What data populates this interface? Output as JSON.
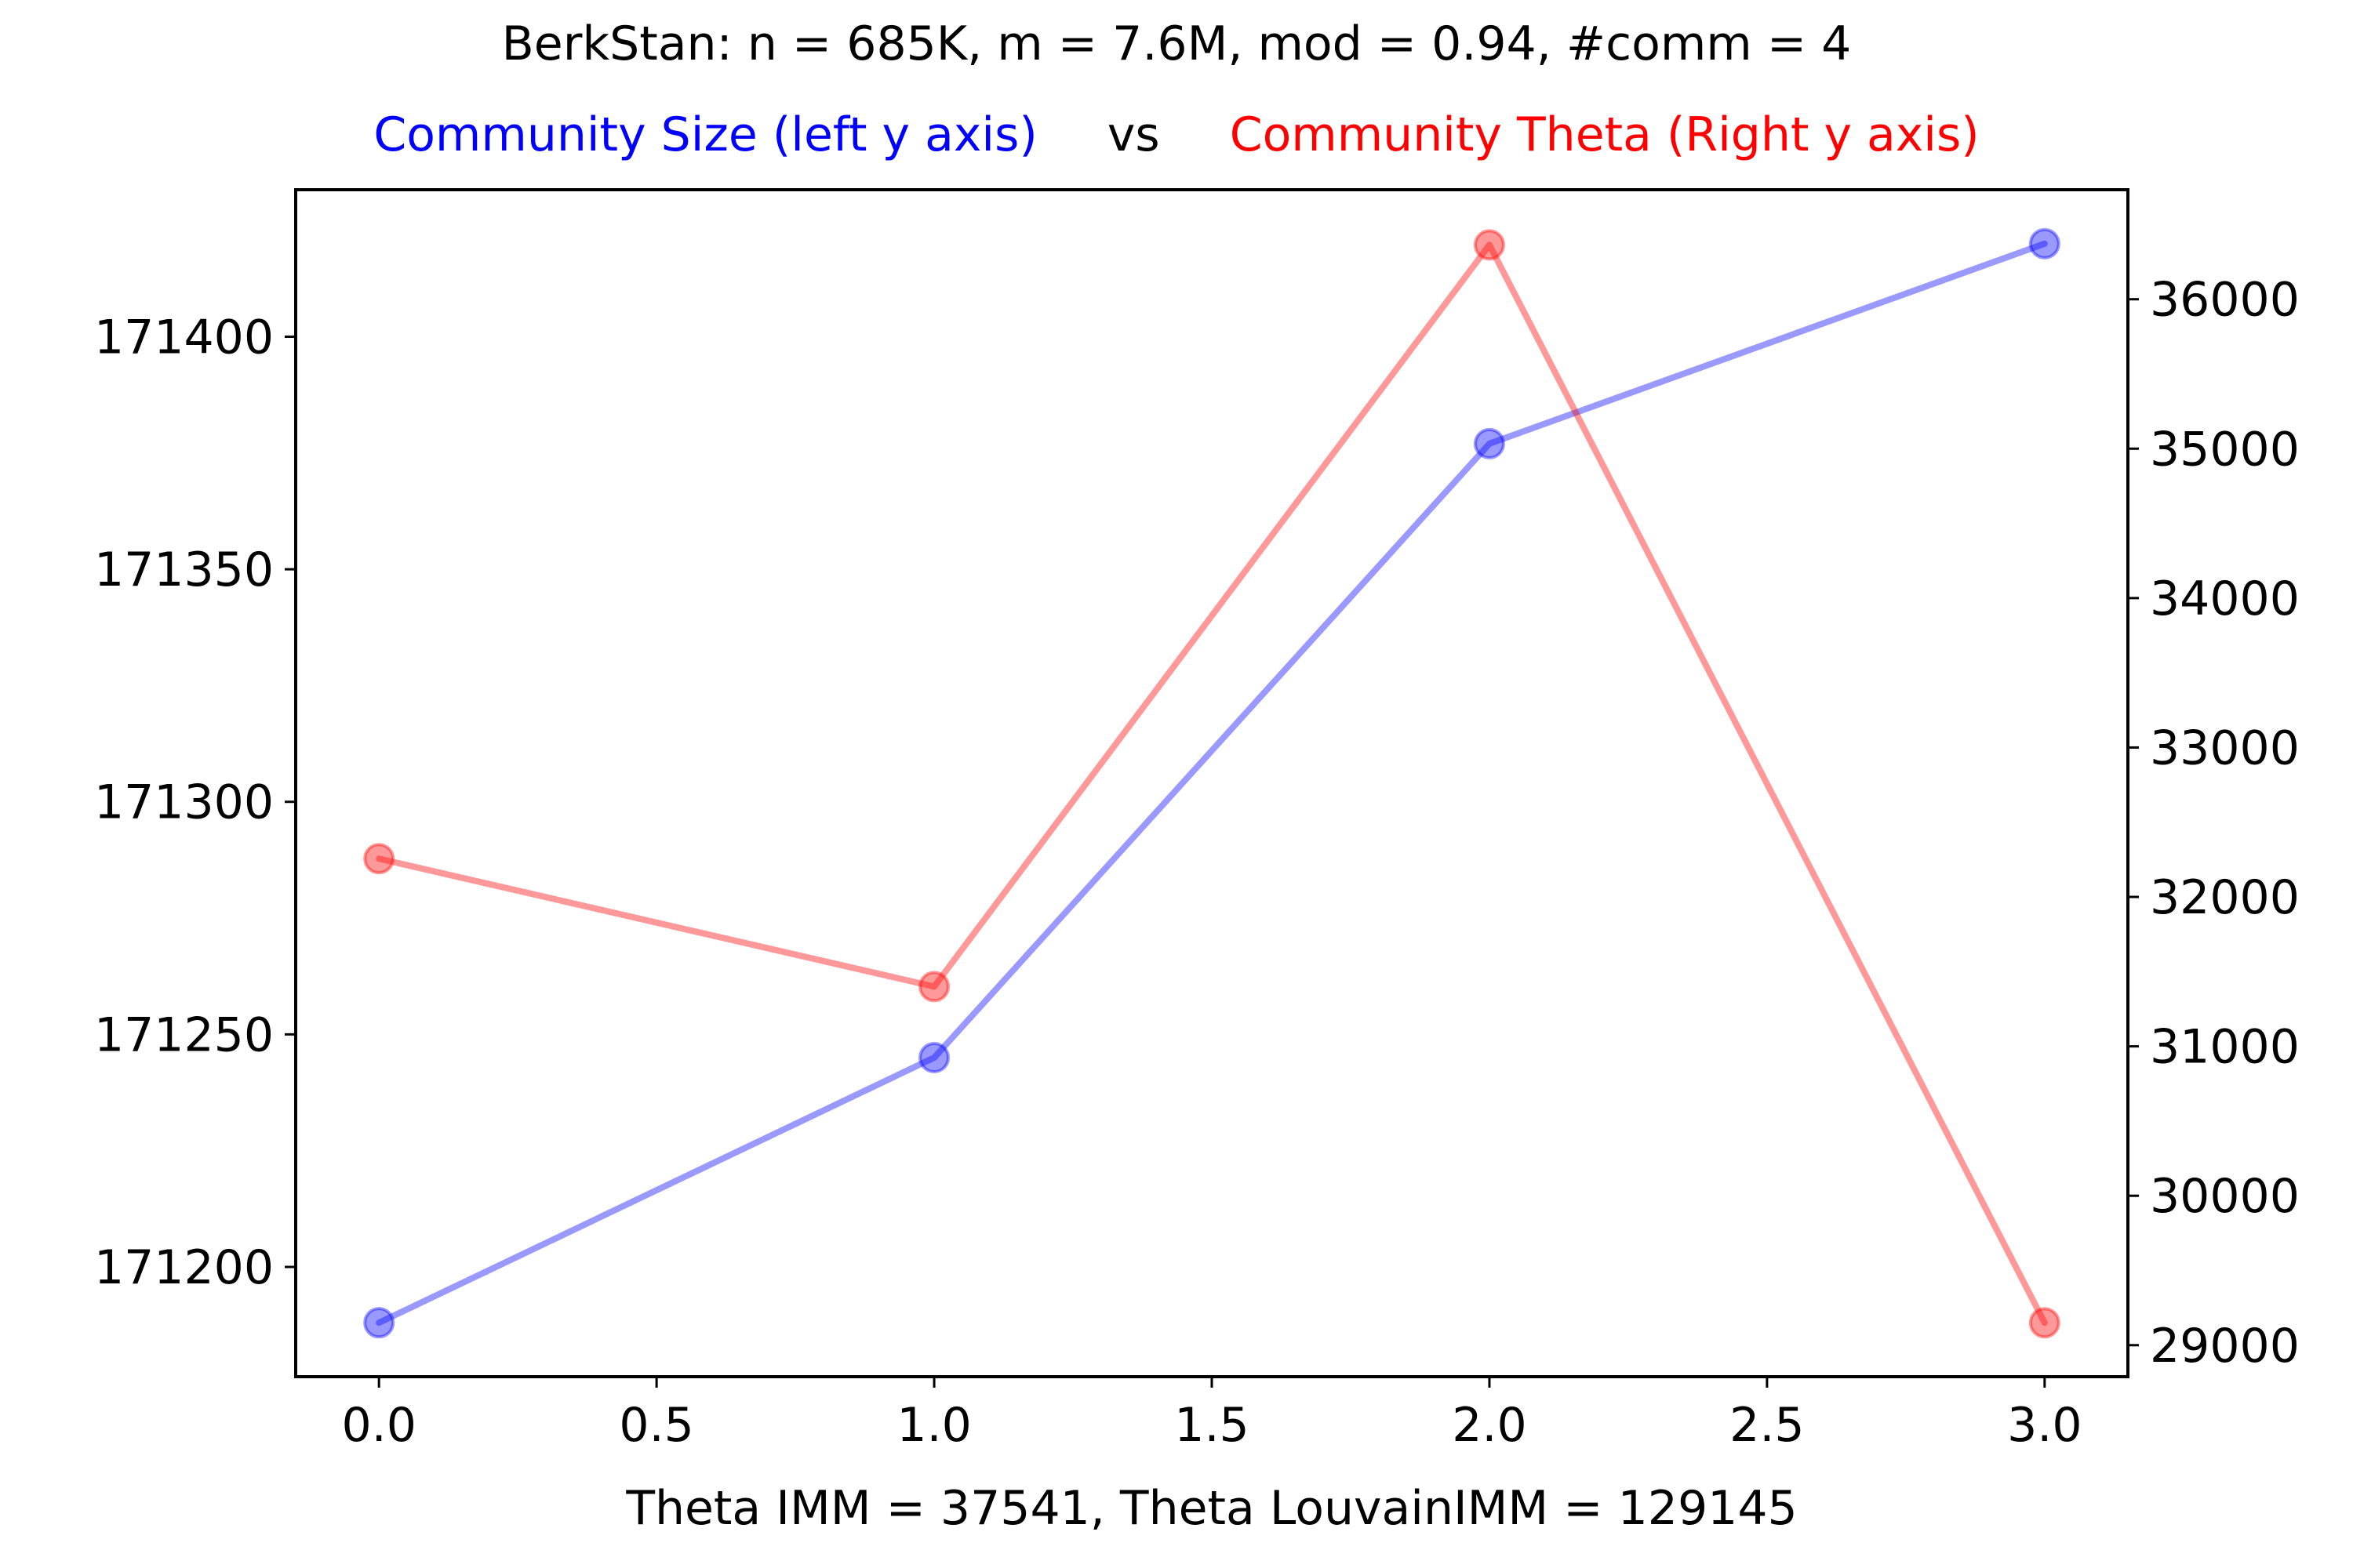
{
  "chart_data": {
    "type": "line",
    "title": "BerkStan: n = 685K, m = 7.6M, mod = 0.94, #comm = 4",
    "subtitle": {
      "left": "Community Size (left y axis)",
      "middle": "vs",
      "right": "Community Theta (Right y axis)"
    },
    "xlabel": "Theta IMM = 37541, Theta LouvainIMM = 129145",
    "x": [
      0,
      1,
      2,
      3
    ],
    "xlim": [
      -0.15,
      3.15
    ],
    "xticks": [
      0.0,
      0.5,
      1.0,
      1.5,
      2.0,
      2.5,
      3.0
    ],
    "xtick_labels": [
      "0.0",
      "0.5",
      "1.0",
      "1.5",
      "2.0",
      "2.5",
      "3.0"
    ],
    "ylim_left": [
      171176.4,
      171431.6
    ],
    "yticks_left": [
      171200,
      171250,
      171300,
      171350,
      171400
    ],
    "ytick_labels_left": [
      "171200",
      "171250",
      "171300",
      "171350",
      "171400"
    ],
    "ylim_right": [
      28789,
      36733
    ],
    "yticks_right": [
      29000,
      30000,
      31000,
      32000,
      33000,
      34000,
      35000,
      36000
    ],
    "ytick_labels_right": [
      "29000",
      "30000",
      "31000",
      "32000",
      "33000",
      "34000",
      "35000",
      "36000"
    ],
    "grid": false,
    "legend": "none",
    "series": [
      {
        "axis": "left",
        "color": "#0000ff",
        "values": [
          171188,
          171245,
          171377,
          171420
        ]
      },
      {
        "axis": "right",
        "color": "#ff0000",
        "values": [
          32256,
          31400,
          36364,
          29150
        ]
      }
    ],
    "colors": {
      "left": "#0000ff",
      "middle": "#000000",
      "right": "#ff0000"
    }
  }
}
